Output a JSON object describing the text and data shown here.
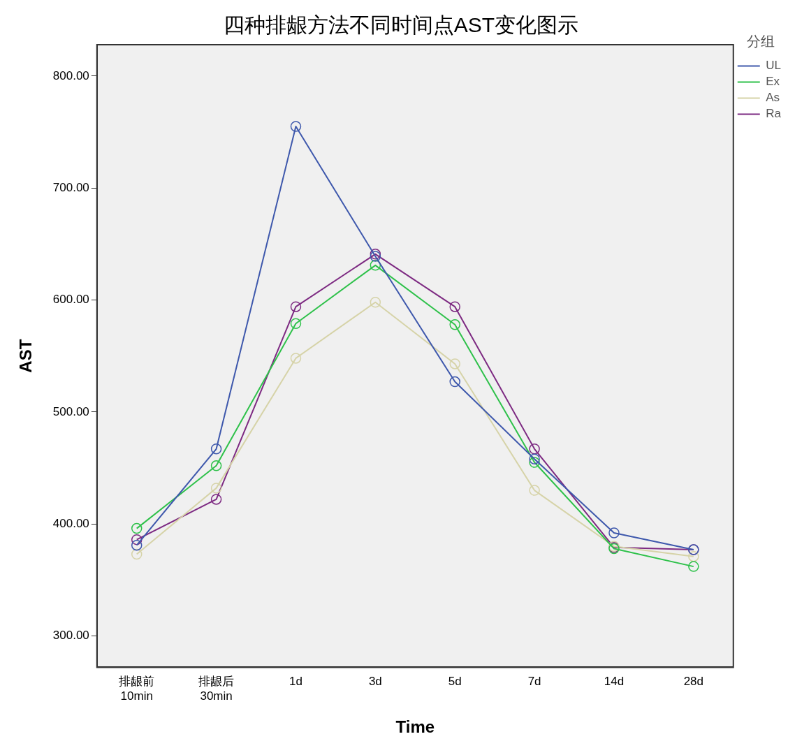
{
  "chart_data": {
    "type": "line",
    "title": "四种排龈方法不同时间点AST变化图示",
    "xlabel": "Time",
    "ylabel": "AST",
    "legend_title": "分组",
    "categories": [
      "排龈前\n10min",
      "排龈后\n30min",
      "1d",
      "3d",
      "5d",
      "7d",
      "14d",
      "28d"
    ],
    "series": [
      {
        "name": "UL",
        "color": "#3e58ac",
        "values": [
          381,
          467,
          755,
          639,
          527,
          458,
          392,
          377
        ]
      },
      {
        "name": "Ex",
        "color": "#2ec14a",
        "values": [
          396,
          452,
          579,
          631,
          578,
          455,
          378,
          362
        ]
      },
      {
        "name": "As",
        "color": "#d6d3a8",
        "values": [
          373,
          432,
          548,
          598,
          543,
          430,
          380,
          371
        ]
      },
      {
        "name": "Ra",
        "color": "#7d2a82",
        "values": [
          386,
          422,
          594,
          641,
          594,
          467,
          379,
          377
        ]
      }
    ],
    "ylim": [
      272,
      828
    ],
    "yticks": [
      {
        "value": 300,
        "label": "300.00"
      },
      {
        "value": 400,
        "label": "400.00"
      },
      {
        "value": 500,
        "label": "500.00"
      },
      {
        "value": 600,
        "label": "600.00"
      },
      {
        "value": 700,
        "label": "700.00"
      },
      {
        "value": 800,
        "label": "800.00"
      }
    ],
    "grid": false,
    "legend": "top right",
    "marker": "circle",
    "line_style": "solid"
  }
}
